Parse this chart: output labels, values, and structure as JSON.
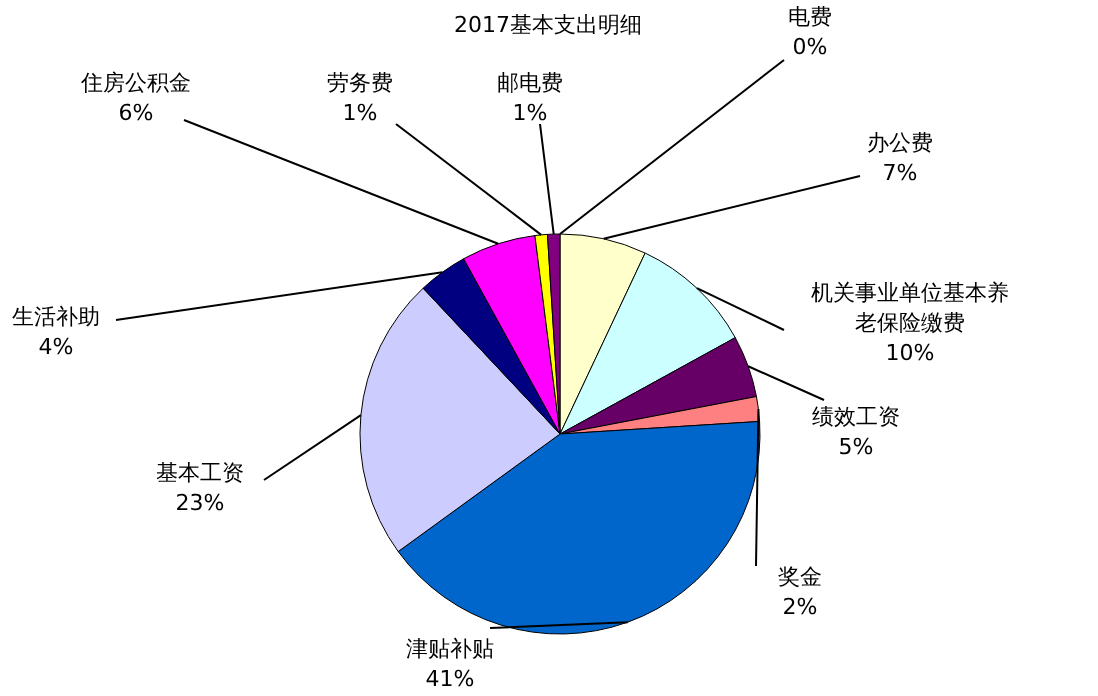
{
  "chart_data": {
    "type": "pie",
    "title": "2017基本支出明细",
    "categories": [
      "电费",
      "办公费",
      "机关事业单位基本养老保险缴费",
      "绩效工资",
      "奖金",
      "津贴补贴",
      "基本工资",
      "生活补助",
      "住房公积金",
      "劳务费",
      "邮电费"
    ],
    "values": [
      0,
      7,
      10,
      5,
      2,
      41,
      23,
      4,
      6,
      1,
      1
    ],
    "value_labels": [
      "0%",
      "7%",
      "10%",
      "5%",
      "2%",
      "41%",
      "23%",
      "4%",
      "6%",
      "1%",
      "1%"
    ],
    "colors": [
      "#9999ff",
      "#ffffcc",
      "#ccffff",
      "#660066",
      "#ff8080",
      "#0066cc",
      "#ccccff",
      "#000080",
      "#ff00ff",
      "#ffff00",
      "#800080"
    ]
  }
}
